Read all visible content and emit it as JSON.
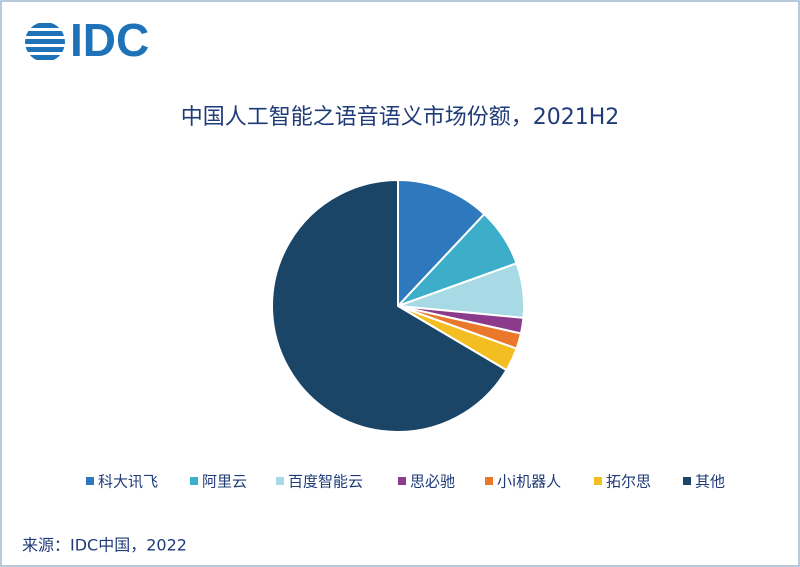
{
  "logo": "IDC",
  "chart_data": {
    "type": "pie",
    "title": "中国人工智能之语音语义市场份额，2021H2",
    "categories": [
      "科大讯飞",
      "阿里云",
      "百度智能云",
      "思必驰",
      "小i机器人",
      "拓尔思",
      "其他"
    ],
    "values": [
      12,
      7.5,
      7,
      2,
      2,
      3,
      66.5
    ],
    "colors": [
      "#2e78bd",
      "#3caec9",
      "#a8dae6",
      "#8c3a8c",
      "#e9782a",
      "#f2be22",
      "#1b4567"
    ],
    "legend": "bottom"
  },
  "source": "来源：IDC中国，2022"
}
